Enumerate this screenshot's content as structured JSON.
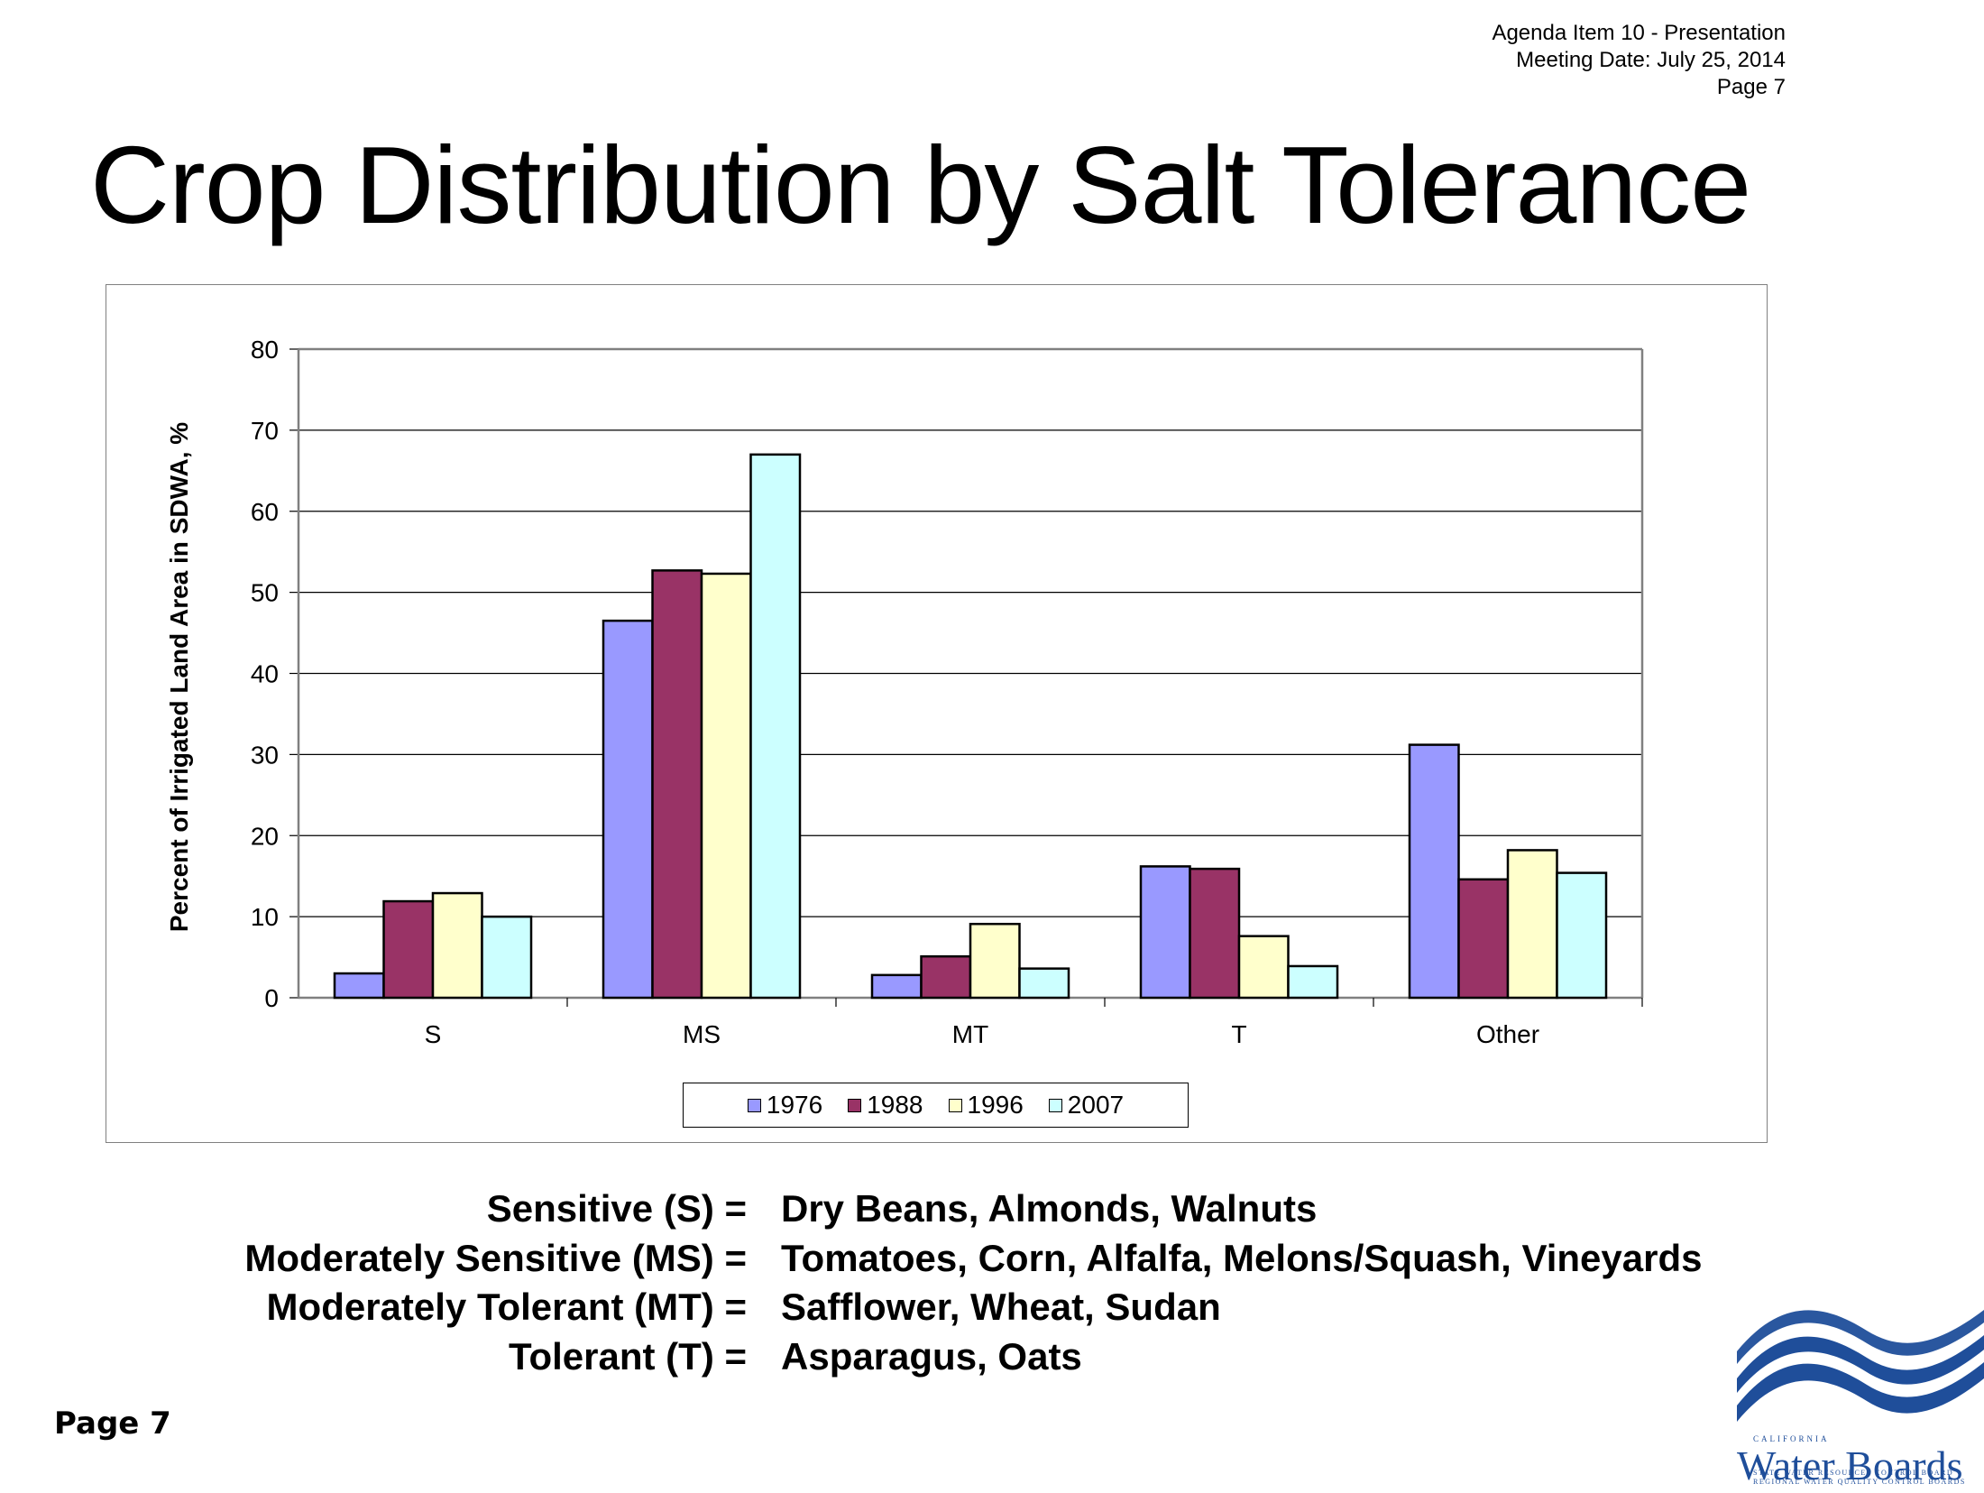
{
  "header": {
    "line1": "Agenda Item 10 - Presentation",
    "line2": "Meeting Date:  July 25, 2014",
    "line3": "Page 7"
  },
  "title": "Crop Distribution by Salt Tolerance",
  "chart_data": {
    "type": "bar",
    "title": "",
    "xlabel": "",
    "ylabel": "Percent of Irrigated Land Area in SDWA, %",
    "ylim": [
      0,
      80
    ],
    "yticks": [
      "0",
      "10",
      "20",
      "30",
      "40",
      "50",
      "60",
      "70",
      "80"
    ],
    "categories": [
      "S",
      "MS",
      "MT",
      "T",
      "Other"
    ],
    "series": [
      {
        "name": "1976",
        "color": "#9999FF",
        "values": [
          3.0,
          46.5,
          2.8,
          16.2,
          31.2
        ]
      },
      {
        "name": "1988",
        "color": "#993366",
        "values": [
          11.9,
          52.7,
          5.1,
          15.9,
          14.6
        ]
      },
      {
        "name": "1996",
        "color": "#FFFFCC",
        "values": [
          12.9,
          52.3,
          9.1,
          7.6,
          18.2
        ]
      },
      {
        "name": "2007",
        "color": "#CCFFFF",
        "values": [
          10.0,
          67.0,
          3.6,
          3.9,
          15.4
        ]
      }
    ],
    "grid": true,
    "legend": "bottom"
  },
  "definitions": [
    {
      "term": "Sensitive (S) =",
      "crops": "Dry Beans, Almonds, Walnuts"
    },
    {
      "term": "Moderately Sensitive (MS) =",
      "crops": "Tomatoes, Corn, Alfalfa, Melons/Squash, Vineyards"
    },
    {
      "term": "Moderately Tolerant (MT) =",
      "crops": "Safflower, Wheat, Sudan"
    },
    {
      "term": "Tolerant (T) =",
      "crops": "Asparagus, Oats"
    }
  ],
  "footer": {
    "page_label": "Page 7"
  },
  "logo": {
    "small_top": "CALIFORNIA",
    "name": "Water Boards",
    "line1": "STATE WATER RESOURCES CONTROL BOARD",
    "line2": "REGIONAL WATER QUALITY CONTROL BOARDS",
    "color": "#1F4E9A"
  }
}
